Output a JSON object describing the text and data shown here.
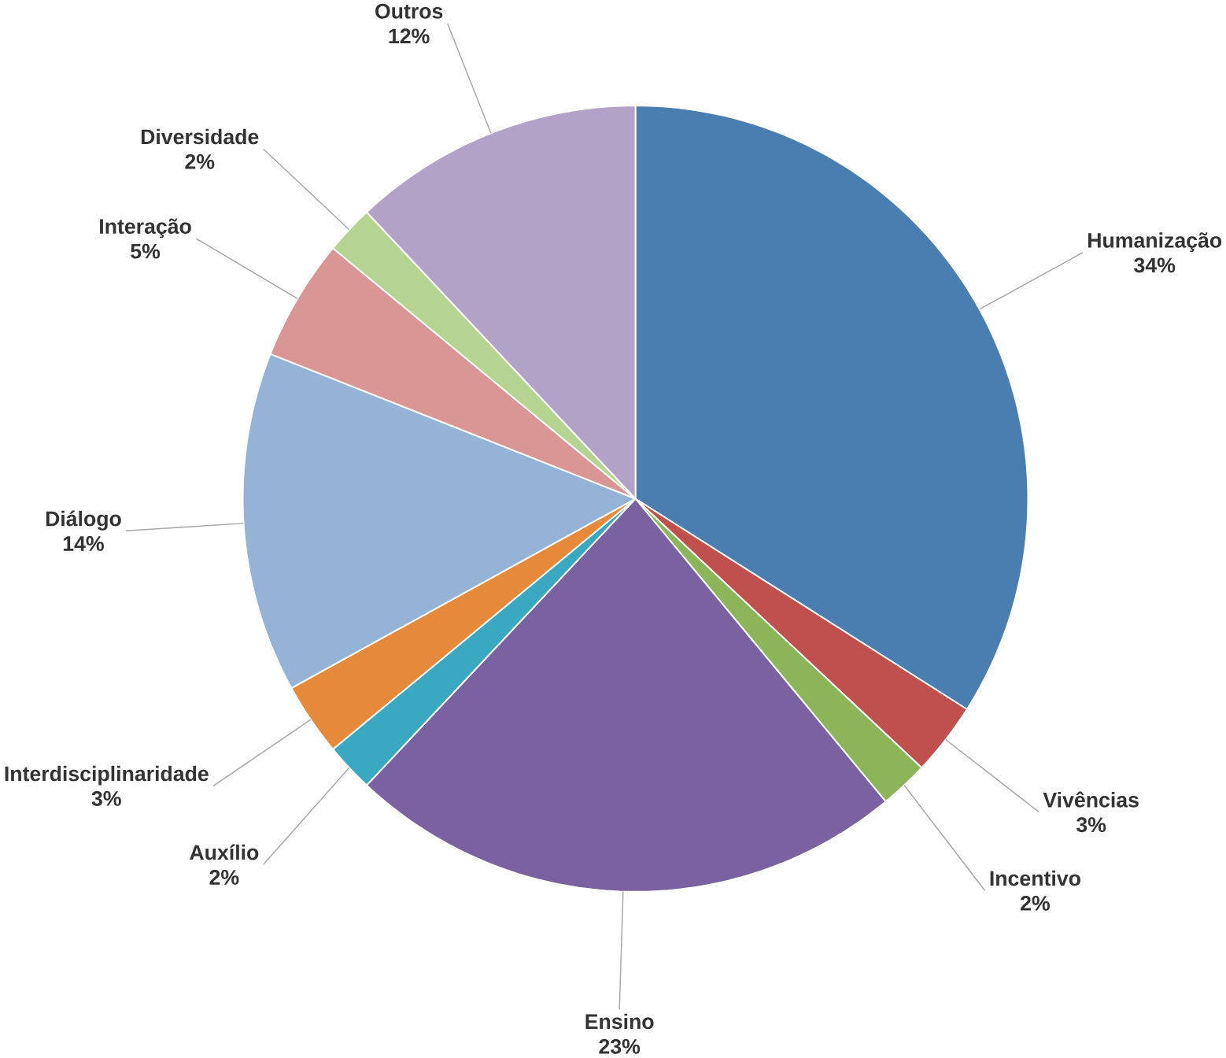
{
  "chart_data": {
    "type": "pie",
    "categories": [
      "Humanização",
      "Vivências",
      "Incentivo",
      "Ensino",
      "Auxílio",
      "Interdisciplinaridade",
      "Diálogo",
      "Interação",
      "Diversidade",
      "Outros"
    ],
    "values": [
      34,
      3,
      2,
      23,
      2,
      3,
      14,
      5,
      2,
      12
    ],
    "colors": [
      "#4a7eb0",
      "#c0504d",
      "#8cb55a",
      "#7a62a0",
      "#3aa8c0",
      "#e5893a",
      "#95b3d7",
      "#d99694",
      "#b5d492",
      "#b2a2c7"
    ],
    "value_labels": [
      "34%",
      "3%",
      "2%",
      "23%",
      "2%",
      "3%",
      "14%",
      "5%",
      "2%",
      "12%"
    ]
  }
}
